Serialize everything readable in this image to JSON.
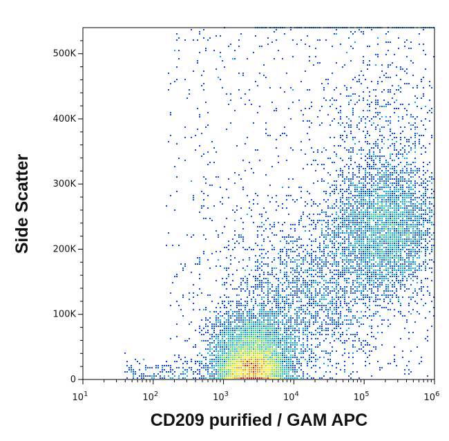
{
  "chart_data": {
    "type": "scatter",
    "plot_style": "density-colored flow cytometry dot plot",
    "xlabel": "CD209 purified / GAM APC",
    "ylabel": "Side Scatter",
    "x_scale": "log",
    "xlim": [
      10,
      1000000
    ],
    "ylim": [
      0,
      540000
    ],
    "x_ticks": [
      {
        "value": 10,
        "base": "10",
        "exp": "1"
      },
      {
        "value": 100,
        "base": "10",
        "exp": "2"
      },
      {
        "value": 1000,
        "base": "10",
        "exp": "3"
      },
      {
        "value": 10000,
        "base": "10",
        "exp": "4"
      },
      {
        "value": 100000,
        "base": "10",
        "exp": "5"
      },
      {
        "value": 1000000,
        "base": "10",
        "exp": "6"
      }
    ],
    "y_ticks": [
      {
        "value": 0,
        "label": "0"
      },
      {
        "value": 100000,
        "label": "100K"
      },
      {
        "value": 200000,
        "label": "200K"
      },
      {
        "value": 300000,
        "label": "300K"
      },
      {
        "value": 400000,
        "label": "400K"
      },
      {
        "value": 500000,
        "label": "500K"
      }
    ],
    "populations": [
      {
        "center_x": 2500,
        "center_y": 15000,
        "spread_log_x": 0.22,
        "spread_y": 15000,
        "weight": 5000
      },
      {
        "center_x": 2800,
        "center_y": 50000,
        "spread_log_x": 0.3,
        "spread_y": 28000,
        "weight": 3000
      },
      {
        "center_x": 200000,
        "center_y": 230000,
        "spread_log_x": 0.38,
        "spread_y": 50000,
        "weight": 3500
      },
      {
        "center_x": 15000,
        "center_y": 130000,
        "spread_log_x": 0.55,
        "spread_y": 60000,
        "weight": 1800
      },
      {
        "center_x": 150000,
        "center_y": 360000,
        "spread_log_x": 0.45,
        "spread_y": 90000,
        "weight": 700
      }
    ],
    "density_colors": [
      "#0000cc",
      "#0044ff",
      "#00aaee",
      "#22dd88",
      "#88ee22",
      "#ffee00",
      "#ff8800",
      "#ee0000"
    ],
    "grid": false,
    "legend": "none"
  }
}
